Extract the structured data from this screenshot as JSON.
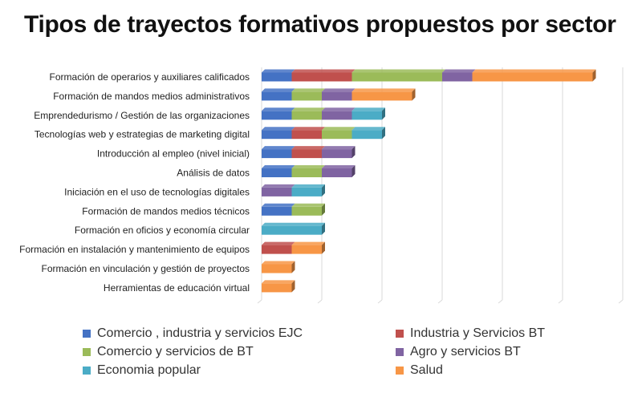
{
  "chart_data": {
    "type": "bar",
    "orientation": "horizontal",
    "stacked": true,
    "title": "Tipos de trayectos formativos propuestos por sector",
    "xlabel": "",
    "ylabel": "",
    "xlim": [
      0,
      12
    ],
    "grid": true,
    "legend_position": "bottom",
    "categories": [
      "Formación de operarios y auxiliares calificados",
      "Formación de mandos medios administrativos",
      "Emprendedurismo / Gestión de las organizaciones",
      "Tecnologías web y estrategias de marketing digital",
      "Introducción al empleo (nivel inicial)",
      "Análisis de datos",
      "Iniciación en el uso de tecnologías digitales",
      "Formación de mandos medios técnicos",
      "Formación en oficios y economía circular",
      "Formación en instalación y mantenimiento de equipos",
      "Formación en vinculación y gestión de proyectos",
      "Herramientas de educación virtual"
    ],
    "series": [
      {
        "name": "Comercio , industria y servicios EJC",
        "color": "#4472C4",
        "values": [
          1,
          1,
          1,
          1,
          1,
          1,
          0,
          1,
          0,
          0,
          0,
          0
        ]
      },
      {
        "name": "Industria y Servicios BT",
        "color": "#C0504D",
        "values": [
          2,
          0,
          0,
          1,
          1,
          0,
          0,
          0,
          0,
          1,
          0,
          0
        ]
      },
      {
        "name": "Comercio y servicios de BT",
        "color": "#9BBB59",
        "values": [
          3,
          1,
          1,
          1,
          0,
          1,
          0,
          1,
          0,
          0,
          0,
          0
        ]
      },
      {
        "name": "Agro y servicios BT",
        "color": "#8064A2",
        "values": [
          1,
          1,
          1,
          0,
          1,
          1,
          1,
          0,
          0,
          0,
          0,
          0
        ]
      },
      {
        "name": " Economia popular",
        "color": "#4BACC6",
        "values": [
          0,
          0,
          1,
          1,
          0,
          0,
          1,
          0,
          2,
          0,
          0,
          0
        ]
      },
      {
        "name": "Salud",
        "color": "#F79646",
        "values": [
          4,
          2,
          0,
          0,
          0,
          0,
          0,
          0,
          0,
          1,
          1,
          1
        ]
      }
    ]
  }
}
